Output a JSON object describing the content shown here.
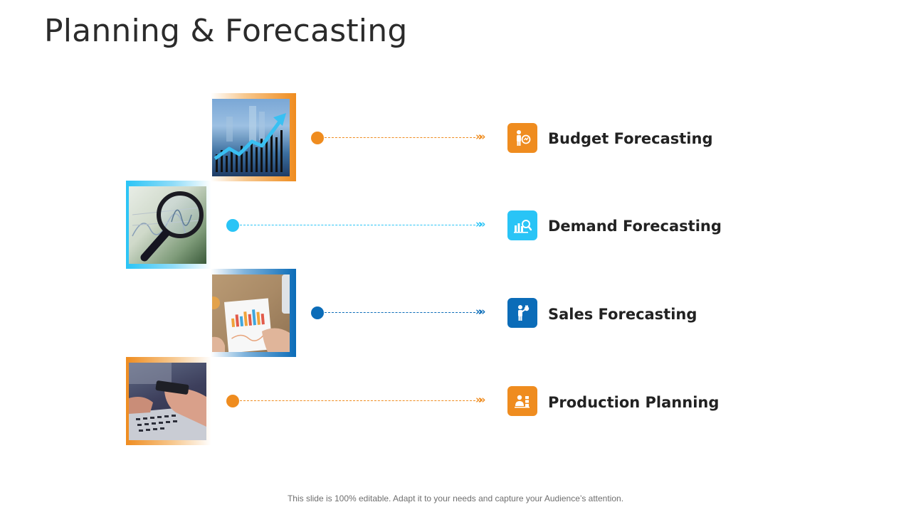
{
  "title": "Planning & Forecasting",
  "items": [
    {
      "label": "Budget Forecasting",
      "color": "#ef8c1f",
      "icon": "person-chart-icon"
    },
    {
      "label": "Demand Forecasting",
      "color": "#29c4f6",
      "icon": "chart-magnifier-icon"
    },
    {
      "label": "Sales Forecasting",
      "color": "#0b6cb8",
      "icon": "person-presenting-icon"
    },
    {
      "label": "Production Planning",
      "color": "#ef8c1f",
      "icon": "worker-boxes-icon"
    }
  ],
  "footer": "This slide is 100% editable. Adapt it to your needs and capture your Audience’s attention."
}
